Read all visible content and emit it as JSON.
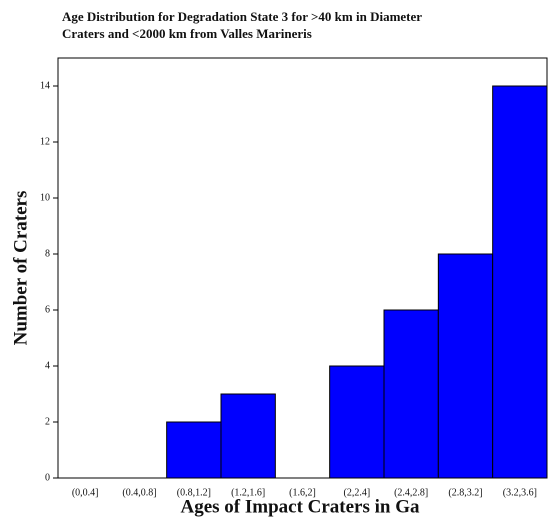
{
  "chart_data": {
    "type": "bar",
    "title": "Age Distribution for Degradation State 3 for >40 km in Diameter Craters and <2000 km from Valles Marineris",
    "x_label": "Ages of Impact Craters in Ga",
    "y_label": "Number of Craters",
    "categories": [
      "(0,0.4]",
      "(0.4,0.8]",
      "(0.8,1.2]",
      "(1.2,1.6]",
      "(1.6,2]",
      "(2,2.4]",
      "(2.4,2.8]",
      "(2.8,3.2]",
      "(3.2,3.6]"
    ],
    "values": [
      0,
      0,
      2,
      3,
      0,
      4,
      6,
      8,
      14
    ],
    "color": "#0000ff",
    "ylim": [
      0,
      15
    ],
    "yticks": [
      0,
      2,
      4,
      6,
      8,
      10,
      12,
      14
    ]
  }
}
